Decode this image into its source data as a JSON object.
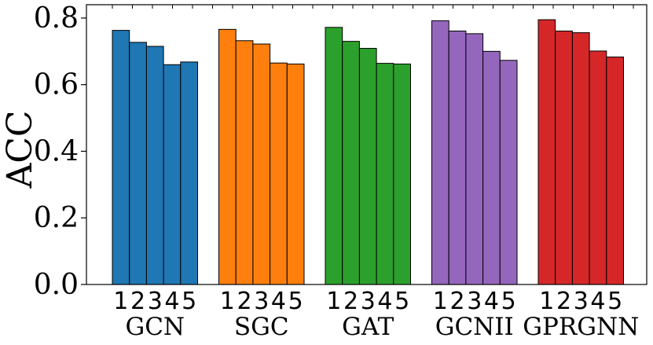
{
  "chart_data": {
    "type": "bar",
    "ylabel": "ACC",
    "ylim": [
      0,
      0.84
    ],
    "yticks": [
      "0.0",
      "0.2",
      "0.4",
      "0.6",
      "0.8"
    ],
    "grid": false,
    "groups": [
      {
        "name": "GCN",
        "color": "#1f77b4",
        "subcategories": [
          "1",
          "2",
          "3",
          "4",
          "5"
        ],
        "values": [
          0.763,
          0.727,
          0.715,
          0.66,
          0.668
        ]
      },
      {
        "name": "SGC",
        "color": "#ff7f0e",
        "subcategories": [
          "1",
          "2",
          "3",
          "4",
          "5"
        ],
        "values": [
          0.766,
          0.732,
          0.722,
          0.665,
          0.662
        ]
      },
      {
        "name": "GAT",
        "color": "#2ca02c",
        "subcategories": [
          "1",
          "2",
          "3",
          "4",
          "5"
        ],
        "values": [
          0.772,
          0.73,
          0.709,
          0.664,
          0.662
        ]
      },
      {
        "name": "GCNII",
        "color": "#9467bd",
        "subcategories": [
          "1",
          "2",
          "3",
          "4",
          "5"
        ],
        "values": [
          0.792,
          0.761,
          0.753,
          0.7,
          0.673
        ]
      },
      {
        "name": "GPRGNN",
        "color": "#d62728",
        "subcategories": [
          "1",
          "2",
          "3",
          "4",
          "5"
        ],
        "values": [
          0.795,
          0.761,
          0.756,
          0.701,
          0.683
        ]
      }
    ]
  }
}
